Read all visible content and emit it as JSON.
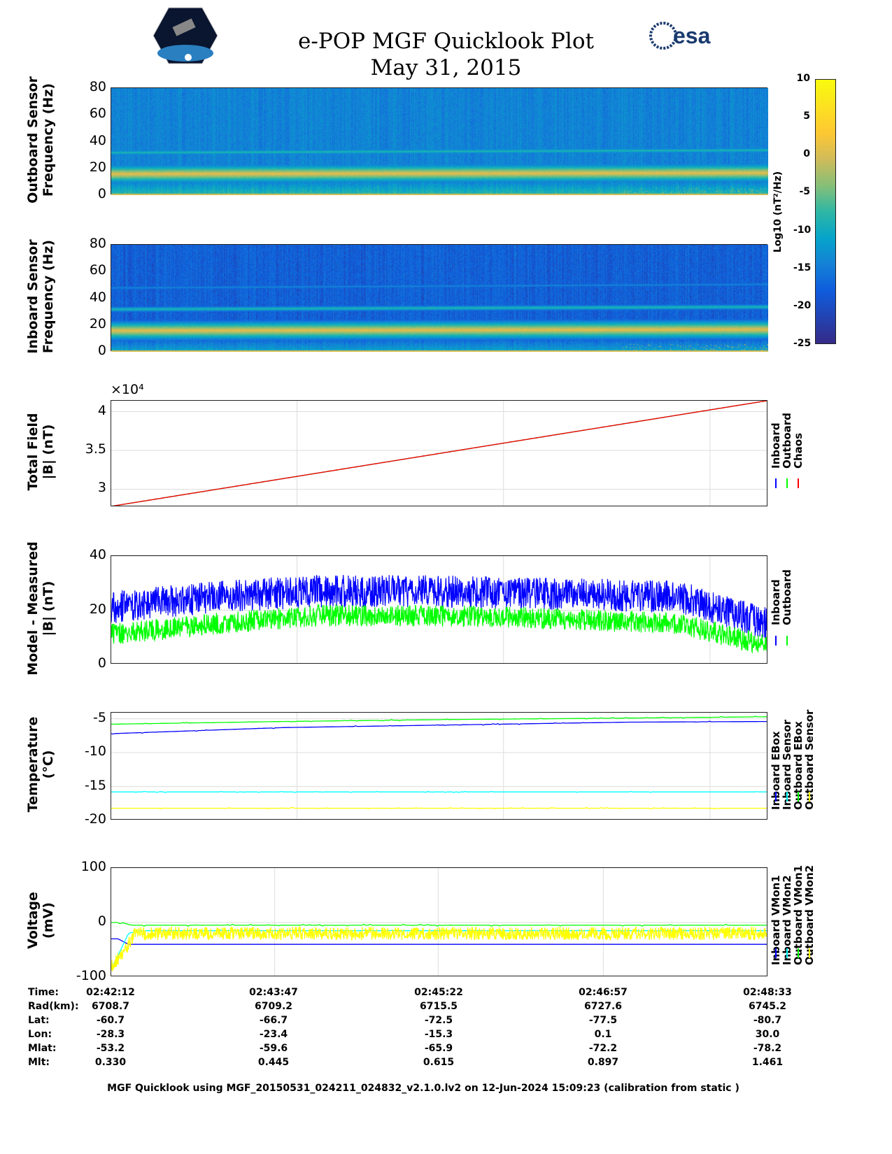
{
  "header": {
    "title": "e-POP MGF Quicklook Plot",
    "date": "May 31, 2015",
    "logo_left": "CASSIOPE",
    "logo_right": "esa"
  },
  "colors": {
    "inboard": "#0000ff",
    "outboard": "#00ff00",
    "chaos": "#ff0000",
    "cyan": "#00ffff",
    "yellow": "#ffff00"
  },
  "colorbar": {
    "label": "Log10 (nT²/Hz)",
    "ticks": [
      "10",
      "5",
      "0",
      "-5",
      "-10",
      "-15",
      "-20",
      "-25"
    ],
    "range": [
      -25,
      10
    ]
  },
  "chart_data": [
    {
      "type": "heatmap",
      "name": "outboard-spectrogram",
      "ylabel": [
        "Outboard Sensor",
        "Frequency (Hz)"
      ],
      "yticks": [
        "80",
        "60",
        "40",
        "20",
        "0"
      ],
      "ylim": [
        0,
        80
      ],
      "background_log10": -16,
      "bands_hz": [
        16,
        32
      ],
      "band_log10": [
        3,
        -8
      ]
    },
    {
      "type": "heatmap",
      "name": "inboard-spectrogram",
      "ylabel": [
        "Inboard Sensor",
        "Frequency (Hz)"
      ],
      "yticks": [
        "80",
        "60",
        "40",
        "20",
        "0"
      ],
      "ylim": [
        0,
        80
      ],
      "background_log10": -20,
      "bands_hz": [
        16,
        32,
        48
      ],
      "band_log10": [
        3,
        -8,
        -15
      ]
    },
    {
      "type": "line",
      "name": "total-field",
      "ylabel": [
        "Total Field",
        "|B| (nT)"
      ],
      "exponent": "×10⁴",
      "yticks": [
        "4",
        "3.5",
        "3"
      ],
      "ytick_values": [
        40000,
        35000,
        30000
      ],
      "ylim": [
        27700,
        41400
      ],
      "xlim": [
        0,
        381
      ],
      "series": [
        {
          "name": "Inboard",
          "color": "#0000ff",
          "x": [
            0,
            381
          ],
          "y": [
            27800,
            41400
          ],
          "noise": 0
        },
        {
          "name": "Outboard",
          "color": "#00ff00",
          "x": [
            0,
            381
          ],
          "y": [
            27800,
            41400
          ],
          "noise": 0
        },
        {
          "name": "Chaos",
          "color": "#ff0000",
          "x": [
            0,
            381
          ],
          "y": [
            27800,
            41400
          ],
          "noise": 0
        }
      ]
    },
    {
      "type": "line",
      "name": "model-minus-measured",
      "ylabel": [
        "Model - Measured",
        "|B| (nT)"
      ],
      "yticks": [
        "40",
        "20",
        "0"
      ],
      "ytick_values": [
        40,
        20,
        0
      ],
      "ylim": [
        0,
        40
      ],
      "xlim": [
        0,
        381
      ],
      "series": [
        {
          "name": "Inboard",
          "color": "#0000ff",
          "x": [
            0,
            60,
            120,
            190,
            260,
            330,
            381
          ],
          "y": [
            21,
            25,
            27,
            27,
            26,
            25,
            15
          ],
          "noise": 6
        },
        {
          "name": "Outboard",
          "color": "#00ff00",
          "x": [
            0,
            60,
            120,
            190,
            260,
            330,
            381
          ],
          "y": [
            11,
            15,
            18,
            18,
            17,
            15,
            7
          ],
          "noise": 4
        }
      ]
    },
    {
      "type": "line",
      "name": "temperature",
      "ylabel": [
        "Temperature",
        "(°C)"
      ],
      "yticks": [
        "-5",
        "-10",
        "-15",
        "-20"
      ],
      "ytick_values": [
        -5,
        -10,
        -15,
        -20
      ],
      "ylim": [
        -20,
        -4.1
      ],
      "xlim": [
        0,
        381
      ],
      "series": [
        {
          "name": "Inboard EBox",
          "color": "#0000ff",
          "x": [
            0,
            100,
            200,
            300,
            381
          ],
          "y": [
            -7.2,
            -6.3,
            -5.9,
            -5.5,
            -5.4
          ],
          "noise": 0.1
        },
        {
          "name": "Inboard Sensor",
          "color": "#00ffff",
          "x": [
            0,
            381
          ],
          "y": [
            -15.8,
            -15.8
          ],
          "noise": 0.1
        },
        {
          "name": "Outboard EBox",
          "color": "#00ff00",
          "x": [
            0,
            100,
            200,
            300,
            381
          ],
          "y": [
            -5.8,
            -5.4,
            -5.1,
            -4.9,
            -4.7
          ],
          "noise": 0.1
        },
        {
          "name": "Outboard Sensor",
          "color": "#ffff00",
          "x": [
            0,
            381
          ],
          "y": [
            -18.2,
            -18.2
          ],
          "noise": 0.1
        }
      ]
    },
    {
      "type": "line",
      "name": "voltage",
      "ylabel": [
        "Voltage",
        "(mV)"
      ],
      "yticks": [
        "100",
        "0",
        "-100"
      ],
      "ytick_values": [
        100,
        0,
        -100
      ],
      "ylim": [
        -100,
        100
      ],
      "xlim": [
        0,
        381
      ],
      "series": [
        {
          "name": "Inboard VMon1",
          "color": "#0000ff",
          "x": [
            0,
            4,
            10,
            381
          ],
          "y": [
            -30,
            -30,
            -40,
            -40
          ],
          "noise": 0
        },
        {
          "name": "Inboard VMon2",
          "color": "#00ffff",
          "x": [
            0,
            4,
            10,
            16,
            381
          ],
          "y": [
            -85,
            -60,
            -20,
            -15,
            -15
          ],
          "noise": 1
        },
        {
          "name": "Outboard VMon1",
          "color": "#00ff00",
          "x": [
            0,
            6,
            12,
            381
          ],
          "y": [
            0,
            0,
            -5,
            -5
          ],
          "noise": 2
        },
        {
          "name": "Outboard VMon2",
          "color": "#ffff00",
          "x": [
            0,
            6,
            14,
            381
          ],
          "y": [
            -80,
            -60,
            -20,
            -20
          ],
          "noise": 12
        }
      ]
    }
  ],
  "ephemeris": {
    "labels": [
      "Time:",
      "Rad(km):",
      "Lat:",
      "Lon:",
      "Mlat:",
      "Mlt:"
    ],
    "columns": [
      [
        "02:42:12",
        "6708.7",
        "-60.7",
        "-28.3",
        "-53.2",
        "0.330"
      ],
      [
        "02:43:47",
        "6709.2",
        "-66.7",
        "-23.4",
        "-59.6",
        "0.445"
      ],
      [
        "02:45:22",
        "6715.5",
        "-72.5",
        "-15.3",
        "-65.9",
        "0.615"
      ],
      [
        "02:46:57",
        "6727.6",
        "-77.5",
        "0.1",
        "-72.2",
        "0.897"
      ],
      [
        "02:48:33",
        "6745.2",
        "-80.7",
        "30.0",
        "-78.2",
        "1.461"
      ]
    ]
  },
  "footer": "MGF Quicklook using MGF_20150531_024211_024832_v2.1.0.lv2 on 12-Jun-2024 15:09:23 (calibration from static )"
}
